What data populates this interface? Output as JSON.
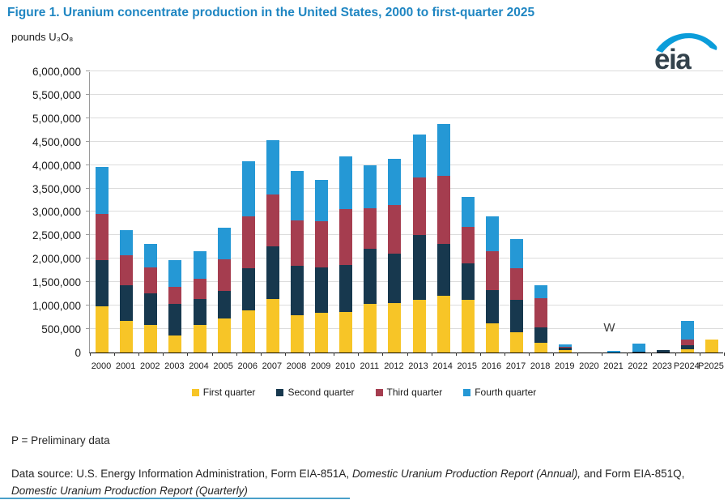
{
  "header": {
    "title": "Figure 1. Uranium concentrate production in the United States, 2000 to first-quarter 2025",
    "subtitle": "pounds U₃O₈",
    "title_color": "#1f86c2",
    "logo_text": "eia"
  },
  "chart_data": {
    "type": "bar",
    "stacked": true,
    "title": "Figure 1. Uranium concentrate production in the United States, 2000 to first-quarter 2025",
    "ylabel": "pounds U₃O₈",
    "ylim": [
      0,
      6000000
    ],
    "ytick_interval": 500000,
    "grid": true,
    "legend_position": "bottom",
    "categories": [
      "2000",
      "2001",
      "2002",
      "2003",
      "2004",
      "2005",
      "2006",
      "2007",
      "2008",
      "2009",
      "2010",
      "2011",
      "2012",
      "2013",
      "2014",
      "2015",
      "2016",
      "2017",
      "2018",
      "2019",
      "2020",
      "2021",
      "2022",
      "2023",
      "P2024",
      "P2025"
    ],
    "series": [
      {
        "name": "First quarter",
        "color": "#f7c527",
        "values": [
          980000,
          680000,
          590000,
          360000,
          580000,
          720000,
          900000,
          1140000,
          800000,
          850000,
          870000,
          1040000,
          1060000,
          1130000,
          1210000,
          1130000,
          620000,
          440000,
          200000,
          50000,
          0,
          0,
          0,
          0,
          70000,
          280000
        ]
      },
      {
        "name": "Second quarter",
        "color": "#17384e",
        "values": [
          980000,
          760000,
          670000,
          680000,
          560000,
          590000,
          900000,
          1130000,
          1060000,
          970000,
          1010000,
          1180000,
          1050000,
          1380000,
          1100000,
          780000,
          710000,
          700000,
          320000,
          60000,
          0,
          0,
          10000,
          50000,
          90000,
          0
        ]
      },
      {
        "name": "Third quarter",
        "color": "#a53d4f",
        "values": [
          990000,
          640000,
          550000,
          370000,
          430000,
          680000,
          1100000,
          1100000,
          970000,
          980000,
          1200000,
          860000,
          1040000,
          1220000,
          1460000,
          770000,
          830000,
          670000,
          620000,
          10000,
          0,
          0,
          0,
          0,
          120000,
          0
        ]
      },
      {
        "name": "Fourth quarter",
        "color": "#2598d5",
        "values": [
          1000000,
          530000,
          510000,
          570000,
          590000,
          680000,
          1180000,
          1160000,
          1060000,
          880000,
          1130000,
          910000,
          980000,
          910000,
          1100000,
          640000,
          740000,
          620000,
          280000,
          60000,
          0,
          30000,
          180000,
          0,
          390000,
          0
        ]
      }
    ],
    "annotations": [
      {
        "text": "W",
        "category": "2021"
      }
    ]
  },
  "footer": {
    "footnote": "P = Preliminary data",
    "source_segments": [
      {
        "text": "Data source: U.S. Energy Information Administration, Form EIA-851A, ",
        "italic": false
      },
      {
        "text": "Domestic Uranium Production Report (Annual),",
        "italic": true
      },
      {
        "text": " and Form EIA-851Q, ",
        "italic": false
      },
      {
        "text": "Domestic Uranium Production Report (Quarterly)",
        "italic": true
      }
    ]
  }
}
